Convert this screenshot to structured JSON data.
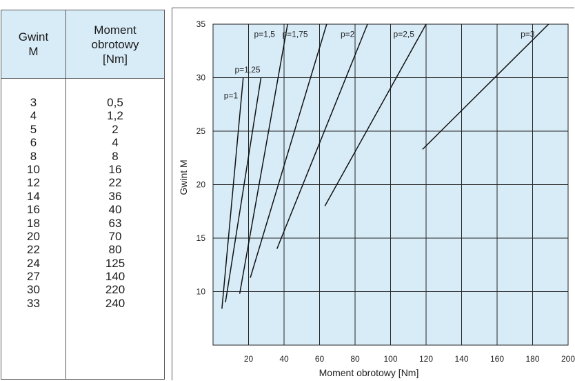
{
  "table": {
    "headers": [
      "Gwint\nM",
      "Moment\nobrotowy\n[Nm]"
    ],
    "thread_sizes": [
      "3",
      "4",
      "5",
      "6",
      "8",
      "10",
      "12",
      "14",
      "16",
      "18",
      "20",
      "22",
      "24",
      "27",
      "30",
      "33"
    ],
    "torques": [
      "0,5",
      "1,2",
      "2",
      "4",
      "8",
      "16",
      "22",
      "36",
      "40",
      "63",
      "70",
      "80",
      "125",
      "140",
      "220",
      "240"
    ]
  },
  "chart_data": {
    "type": "line",
    "xlabel": "Moment obrotowy [Nm]",
    "ylabel": "Gwint M",
    "xlim": [
      0,
      200
    ],
    "ylim": [
      5,
      35
    ],
    "xticks": [
      "20",
      "40",
      "60",
      "80",
      "100",
      "120",
      "140",
      "160",
      "180",
      "200"
    ],
    "yticks": [
      "10",
      "15",
      "20",
      "25",
      "30",
      "35"
    ],
    "grid": true,
    "colors": {
      "plot_bg": "#d8ecf8",
      "grid": "#222222",
      "line": "#111111"
    },
    "series": [
      {
        "name": "p=1",
        "points": [
          [
            5,
            8.4
          ],
          [
            17,
            30
          ]
        ]
      },
      {
        "name": "p=1,25",
        "points": [
          [
            7,
            9
          ],
          [
            27,
            30
          ]
        ]
      },
      {
        "name": "p=1,5",
        "points": [
          [
            15,
            9.8
          ],
          [
            42,
            35
          ]
        ]
      },
      {
        "name": "p=1,75",
        "points": [
          [
            21,
            11.3
          ],
          [
            64,
            35
          ]
        ]
      },
      {
        "name": "p=2",
        "points": [
          [
            36,
            14
          ],
          [
            87,
            35
          ]
        ]
      },
      {
        "name": "p=2,5",
        "points": [
          [
            63,
            18
          ],
          [
            120,
            35
          ]
        ]
      },
      {
        "name": "p=3",
        "points": [
          [
            118,
            23.3
          ],
          [
            189,
            35
          ]
        ]
      }
    ]
  }
}
